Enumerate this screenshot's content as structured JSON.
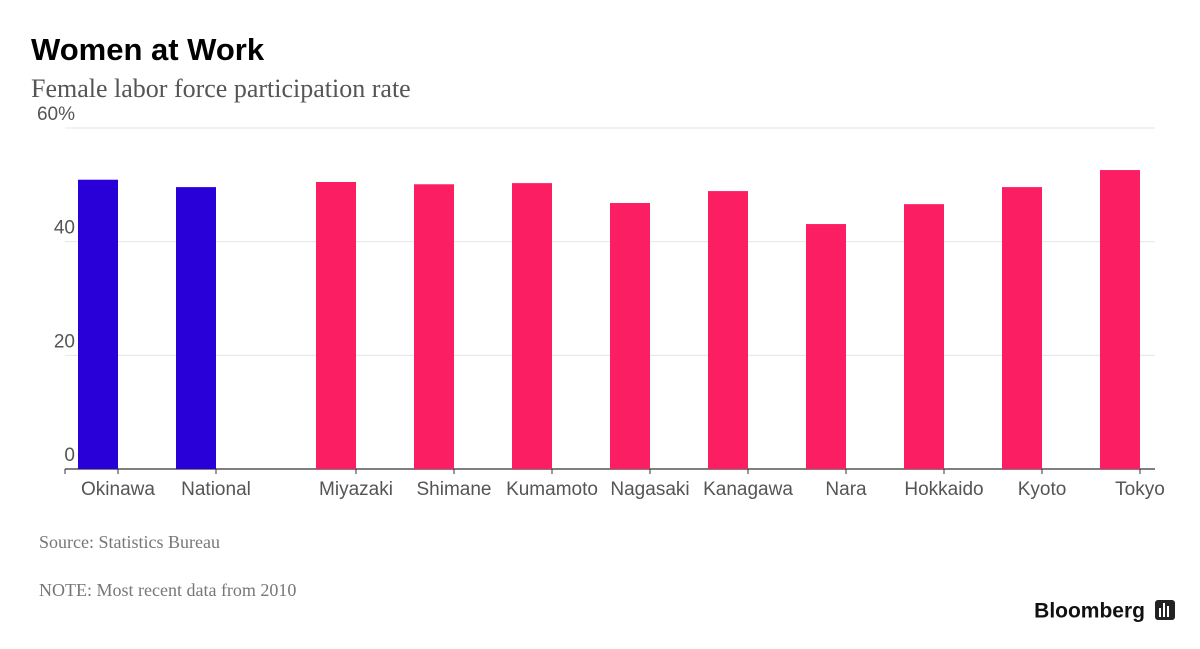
{
  "chart_data": {
    "type": "bar",
    "title": "Women at Work",
    "subtitle": "Female labor force participation rate",
    "categories": [
      "Okinawa",
      "National",
      "Miyazaki",
      "Shimane",
      "Kumamoto",
      "Nagasaki",
      "Kanagawa",
      "Nara",
      "Hokkaido",
      "Kyoto",
      "Tokyo"
    ],
    "values": [
      50.9,
      49.6,
      50.5,
      50.1,
      50.3,
      46.8,
      48.9,
      43.1,
      46.6,
      49.6,
      52.6
    ],
    "colors": [
      "#2a00d8",
      "#2a00d8",
      "#fc1e63",
      "#fc1e63",
      "#fc1e63",
      "#fc1e63",
      "#fc1e63",
      "#fc1e63",
      "#fc1e63",
      "#fc1e63",
      "#fc1e63"
    ],
    "ylim": [
      0,
      60
    ],
    "yticks": [
      0,
      20,
      40,
      {
        "value": 60,
        "label": "60%"
      }
    ],
    "grid": true,
    "source": "Source: Statistics Bureau",
    "note": "NOTE: Most recent data from 2010",
    "brand": "Bloomberg"
  }
}
